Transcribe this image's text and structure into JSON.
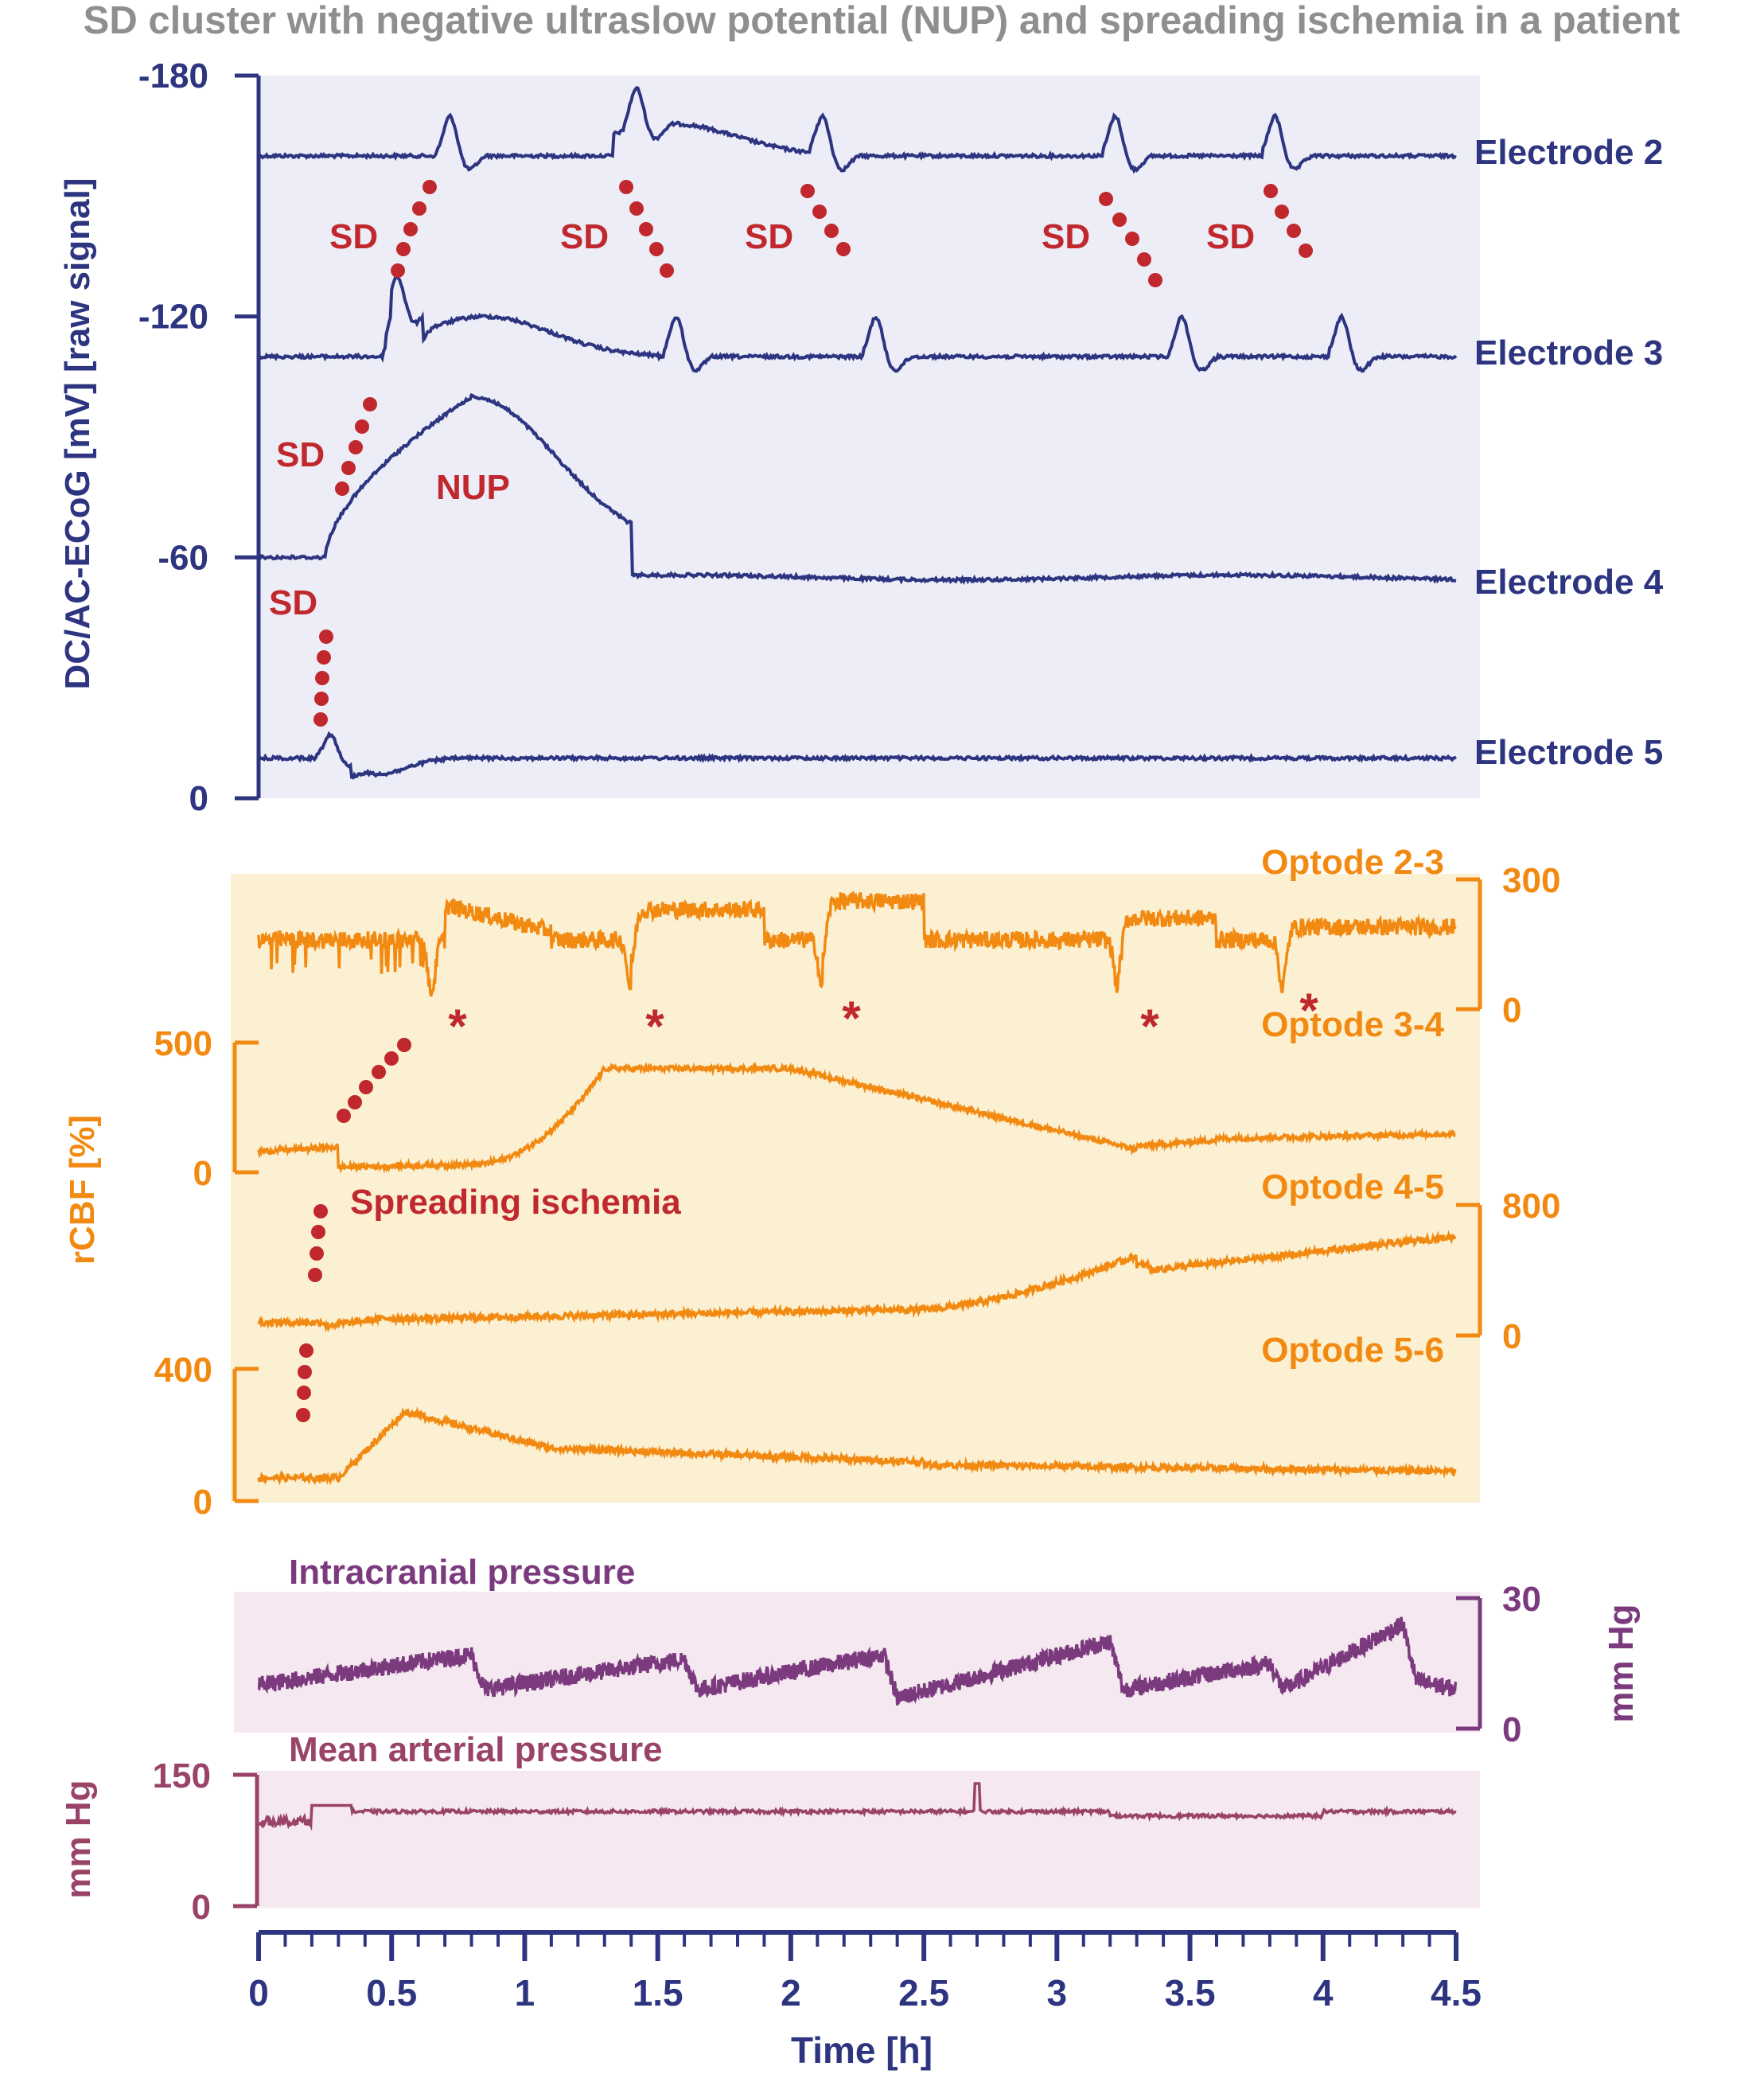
{
  "chart_data": {
    "type": "line",
    "title": "SD cluster with negative ultraslow potential (NUP) and spreading ischemia in a patient",
    "x": {
      "label": "Time [h]",
      "range": [
        0,
        4.5
      ],
      "ticks": [
        "0",
        "0.5",
        "1",
        "1.5",
        "2",
        "2.5",
        "3",
        "3.5",
        "4",
        "4.5"
      ]
    },
    "panels": [
      {
        "id": "ecog",
        "ylabel": "DC/AC-ECoG [mV] [raw signal]",
        "ylim": [
          -180,
          0
        ],
        "yticks": [
          "-180",
          "-120",
          "-60",
          "0"
        ],
        "series": [
          {
            "name": "Electrode 2",
            "baseline": -160,
            "events_h": [
              0.7,
              1.4,
              2.1,
              3.2,
              3.8
            ]
          },
          {
            "name": "Electrode 3",
            "baseline": -110,
            "events_h": [
              0.5,
              1.55,
              2.3,
              3.45,
              4.05
            ]
          },
          {
            "name": "Electrode 4",
            "baseline": -60,
            "peak": -100,
            "peak_h": 0.8
          },
          {
            "name": "Electrode 5",
            "baseline": -10,
            "events_h": [
              0.25
            ]
          }
        ],
        "annotations": {
          "sd_label": "SD",
          "nup_label": "NUP"
        }
      },
      {
        "id": "rcbf",
        "ylabel": "rCBF [%]",
        "series": [
          {
            "name": "Optode 2-3",
            "axis": "right",
            "ylim": [
              0,
              300
            ],
            "ticks": [
              "300",
              "0"
            ]
          },
          {
            "name": "Optode 3-4",
            "axis": "left",
            "ylim": [
              0,
              500
            ],
            "ticks": [
              "500",
              "0"
            ]
          },
          {
            "name": "Optode 4-5",
            "axis": "right",
            "ylim": [
              0,
              800
            ],
            "ticks": [
              "800",
              "0"
            ]
          },
          {
            "name": "Optode 5-6",
            "axis": "left",
            "ylim": [
              0,
              400
            ],
            "ticks": [
              "400",
              "0"
            ]
          }
        ],
        "annotations": {
          "ischemia_label": "Spreading ischemia",
          "star_symbol": "*"
        }
      },
      {
        "id": "icp",
        "title": "Intracranial pressure",
        "ylabel": "mm Hg",
        "axis": "right",
        "ylim": [
          0,
          30
        ],
        "ticks": [
          "30",
          "0"
        ]
      },
      {
        "id": "map",
        "title": "Mean arterial pressure",
        "ylabel": "mm Hg",
        "axis": "left",
        "ylim": [
          0,
          150
        ],
        "ticks": [
          "150",
          "0"
        ]
      }
    ]
  },
  "colors": {
    "ecog": "#2e3580",
    "ecog_bg": "#ecedf7",
    "cbf": "#f28a12",
    "cbf_bg": "#fbf0d2",
    "icp": "#7b3a7e",
    "map": "#9a4368",
    "pressure_bg": "#f5e8f0",
    "annotation": "#c0282d",
    "title": "#8f8f8f"
  }
}
